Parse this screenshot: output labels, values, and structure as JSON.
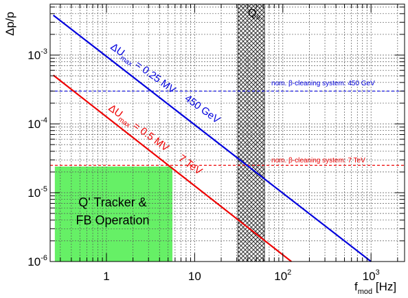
{
  "chart_data": {
    "type": "line",
    "xscale": "log",
    "yscale": "log",
    "xlim": [
      0.23,
      2400
    ],
    "ylim": [
      1e-06,
      0.0055
    ],
    "grid": true,
    "x_ticks": [
      {
        "value": 1,
        "base": "1",
        "exp": ""
      },
      {
        "value": 10,
        "base": "10",
        "exp": ""
      },
      {
        "value": 100,
        "base": "10",
        "exp": "2"
      },
      {
        "value": 1000,
        "base": "10",
        "exp": "3"
      }
    ],
    "y_ticks": [
      {
        "value": 1e-06,
        "base": "10",
        "exp": "-6"
      },
      {
        "value": 1e-05,
        "base": "10",
        "exp": "-5"
      },
      {
        "value": 0.0001,
        "base": "10",
        "exp": "-4"
      },
      {
        "value": 0.001,
        "base": "10",
        "exp": "-3"
      }
    ],
    "xlabel": {
      "main": "f",
      "sub": "mod",
      "unit": " [Hz]"
    },
    "ylabel": "Δp/p",
    "series": [
      {
        "color": "#0000dd",
        "x": [
          0.25,
          1000
        ],
        "y": [
          0.0038,
          1e-06
        ]
      },
      {
        "color": "#ee0000",
        "x": [
          0.25,
          125
        ],
        "y": [
          0.00051,
          1e-06
        ]
      }
    ],
    "series_labels": [
      {
        "delta": "ΔU",
        "sub": "max",
        "rest": " = 0.25 MV",
        "energy": "450 GeV",
        "color": "#0000dd"
      },
      {
        "delta": "ΔU",
        "sub": "max",
        "rest": " = 0.5 MV",
        "energy": "7 TeV",
        "color": "#ee0000"
      }
    ],
    "hlines": [
      {
        "y": 0.0003,
        "color": "#0000dd",
        "label": "nom. β-cleaning system: 450 GeV"
      },
      {
        "y": 2.5e-05,
        "color": "#ee0000",
        "label": "nom. β-cleaning system: 7 TeV"
      }
    ],
    "bands": [
      {
        "xmin": 31,
        "xmax": 62,
        "label_main": "Q",
        "label_sub": "s",
        "pattern": "crosshatch"
      }
    ],
    "regions": [
      {
        "xmin": 0.26,
        "xmax": 5.6,
        "ymin": 1e-06,
        "ymax": 2.4e-05,
        "color": "#55ee55",
        "label_lines": [
          "Q' Tracker &",
          "FB Operation"
        ]
      }
    ]
  }
}
